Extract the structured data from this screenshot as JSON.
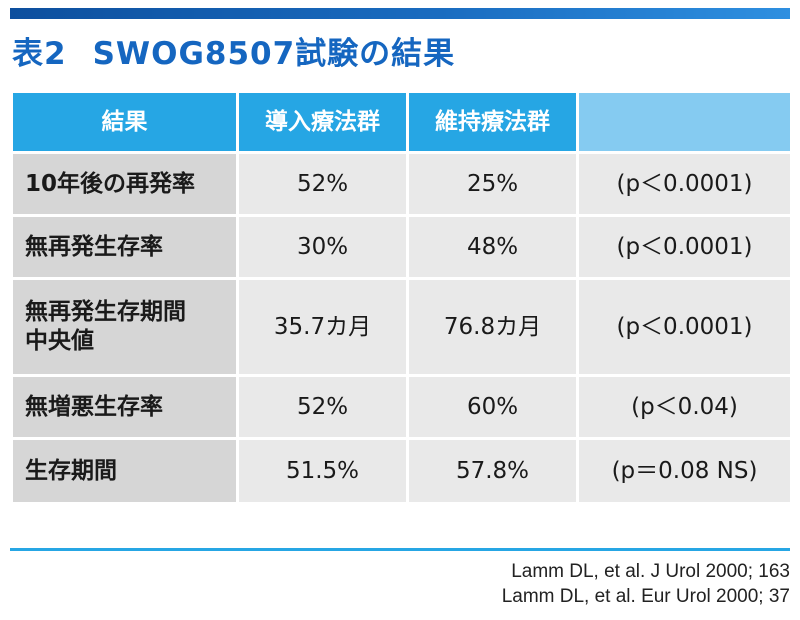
{
  "title": {
    "label": "表2",
    "text": "SWOG8507試験の結果"
  },
  "table": {
    "headers": [
      "結果",
      "導入療法群",
      "維持療法群",
      ""
    ],
    "rows": [
      {
        "label": "10年後の再発率",
        "induction": "52%",
        "maintenance": "25%",
        "p": "(p＜0.0001)"
      },
      {
        "label": "無再発生存率",
        "induction": "30%",
        "maintenance": "48%",
        "p": "(p＜0.0001)"
      },
      {
        "label_line1": "無再発生存期間",
        "label_line2": "中央値",
        "induction": "35.7カ月",
        "maintenance": "76.8カ月",
        "p": "(p＜0.0001)"
      },
      {
        "label": "無増悪生存率",
        "induction": "52%",
        "maintenance": "60%",
        "p": "(p＜0.04)"
      },
      {
        "label": "生存期間",
        "induction": "51.5%",
        "maintenance": "57.8%",
        "p": "(p＝0.08 NS)"
      }
    ]
  },
  "references": [
    "Lamm DL, et al. J Urol 2000; 163",
    "Lamm DL, et al. Eur Urol 2000; 37"
  ],
  "colors": {
    "title": "#1566c0",
    "header_dark": "#26a6e4",
    "header_light": "#85cbf1",
    "label_cell": "#d6d6d6",
    "value_cell": "#e9e9e9"
  }
}
